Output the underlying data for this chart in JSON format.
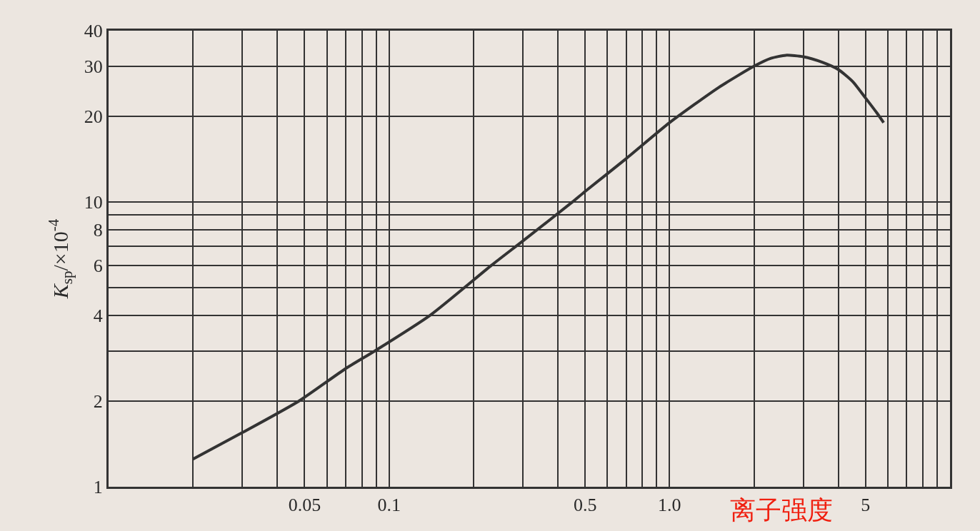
{
  "chart_data": {
    "type": "line",
    "xlabel": "离子强度",
    "ylabel": "K$_{sp}$/×10$^{-4}$",
    "log": "xy",
    "grid": true,
    "marker": "none",
    "line_style": "solid",
    "xlim": [
      0.01,
      10
    ],
    "ylim": [
      1,
      40
    ],
    "xticks": [
      {
        "value": 0.02,
        "label": null
      },
      {
        "value": 0.03,
        "label": null
      },
      {
        "value": 0.04,
        "label": null
      },
      0.05,
      {
        "value": 0.06,
        "label": null
      },
      {
        "value": 0.07,
        "label": null
      },
      {
        "value": 0.08,
        "label": null
      },
      {
        "value": 0.09,
        "label": null
      },
      0.1,
      {
        "value": 0.2,
        "label": null
      },
      {
        "value": 0.3,
        "label": null
      },
      {
        "value": 0.4,
        "label": null
      },
      0.5,
      {
        "value": 0.6,
        "label": null
      },
      {
        "value": 0.7,
        "label": null
      },
      {
        "value": 0.8,
        "label": null
      },
      {
        "value": 0.9,
        "label": null
      },
      {
        "value": 1,
        "label": "1.0"
      },
      {
        "value": 2,
        "label": null
      },
      {
        "value": 3,
        "label": null
      },
      {
        "value": 4,
        "label": null
      },
      5,
      {
        "value": 6,
        "label": null
      },
      {
        "value": 7,
        "label": null
      },
      {
        "value": 8,
        "label": null
      },
      {
        "value": 9,
        "label": null
      }
    ],
    "yticks": [
      1,
      2,
      {
        "value": 3,
        "label": null
      },
      4,
      {
        "value": 5,
        "label": null
      },
      6,
      {
        "value": 7,
        "label": null
      },
      8,
      {
        "value": 9,
        "label": null
      },
      10,
      20,
      30,
      40
    ],
    "x": [
      0.02,
      0.03,
      0.0477,
      0.07,
      0.089,
      0.14,
      0.232,
      0.3,
      0.45,
      0.5,
      0.7,
      1.0,
      1.5,
      2,
      2.3,
      2.6,
      3,
      3.5,
      4,
      4.5,
      5,
      5.5,
      5.8
    ],
    "series": [
      {
        "color": "#333333",
        "values": [
          1.25,
          1.55,
          2,
          2.6,
          3,
          4,
          6,
          7.3,
          10,
          10.9,
          14.2,
          19,
          25.3,
          30,
          32,
          32.8,
          32.4,
          31,
          29.2,
          26.5,
          23.2,
          20.5,
          19
        ]
      }
    ]
  }
}
